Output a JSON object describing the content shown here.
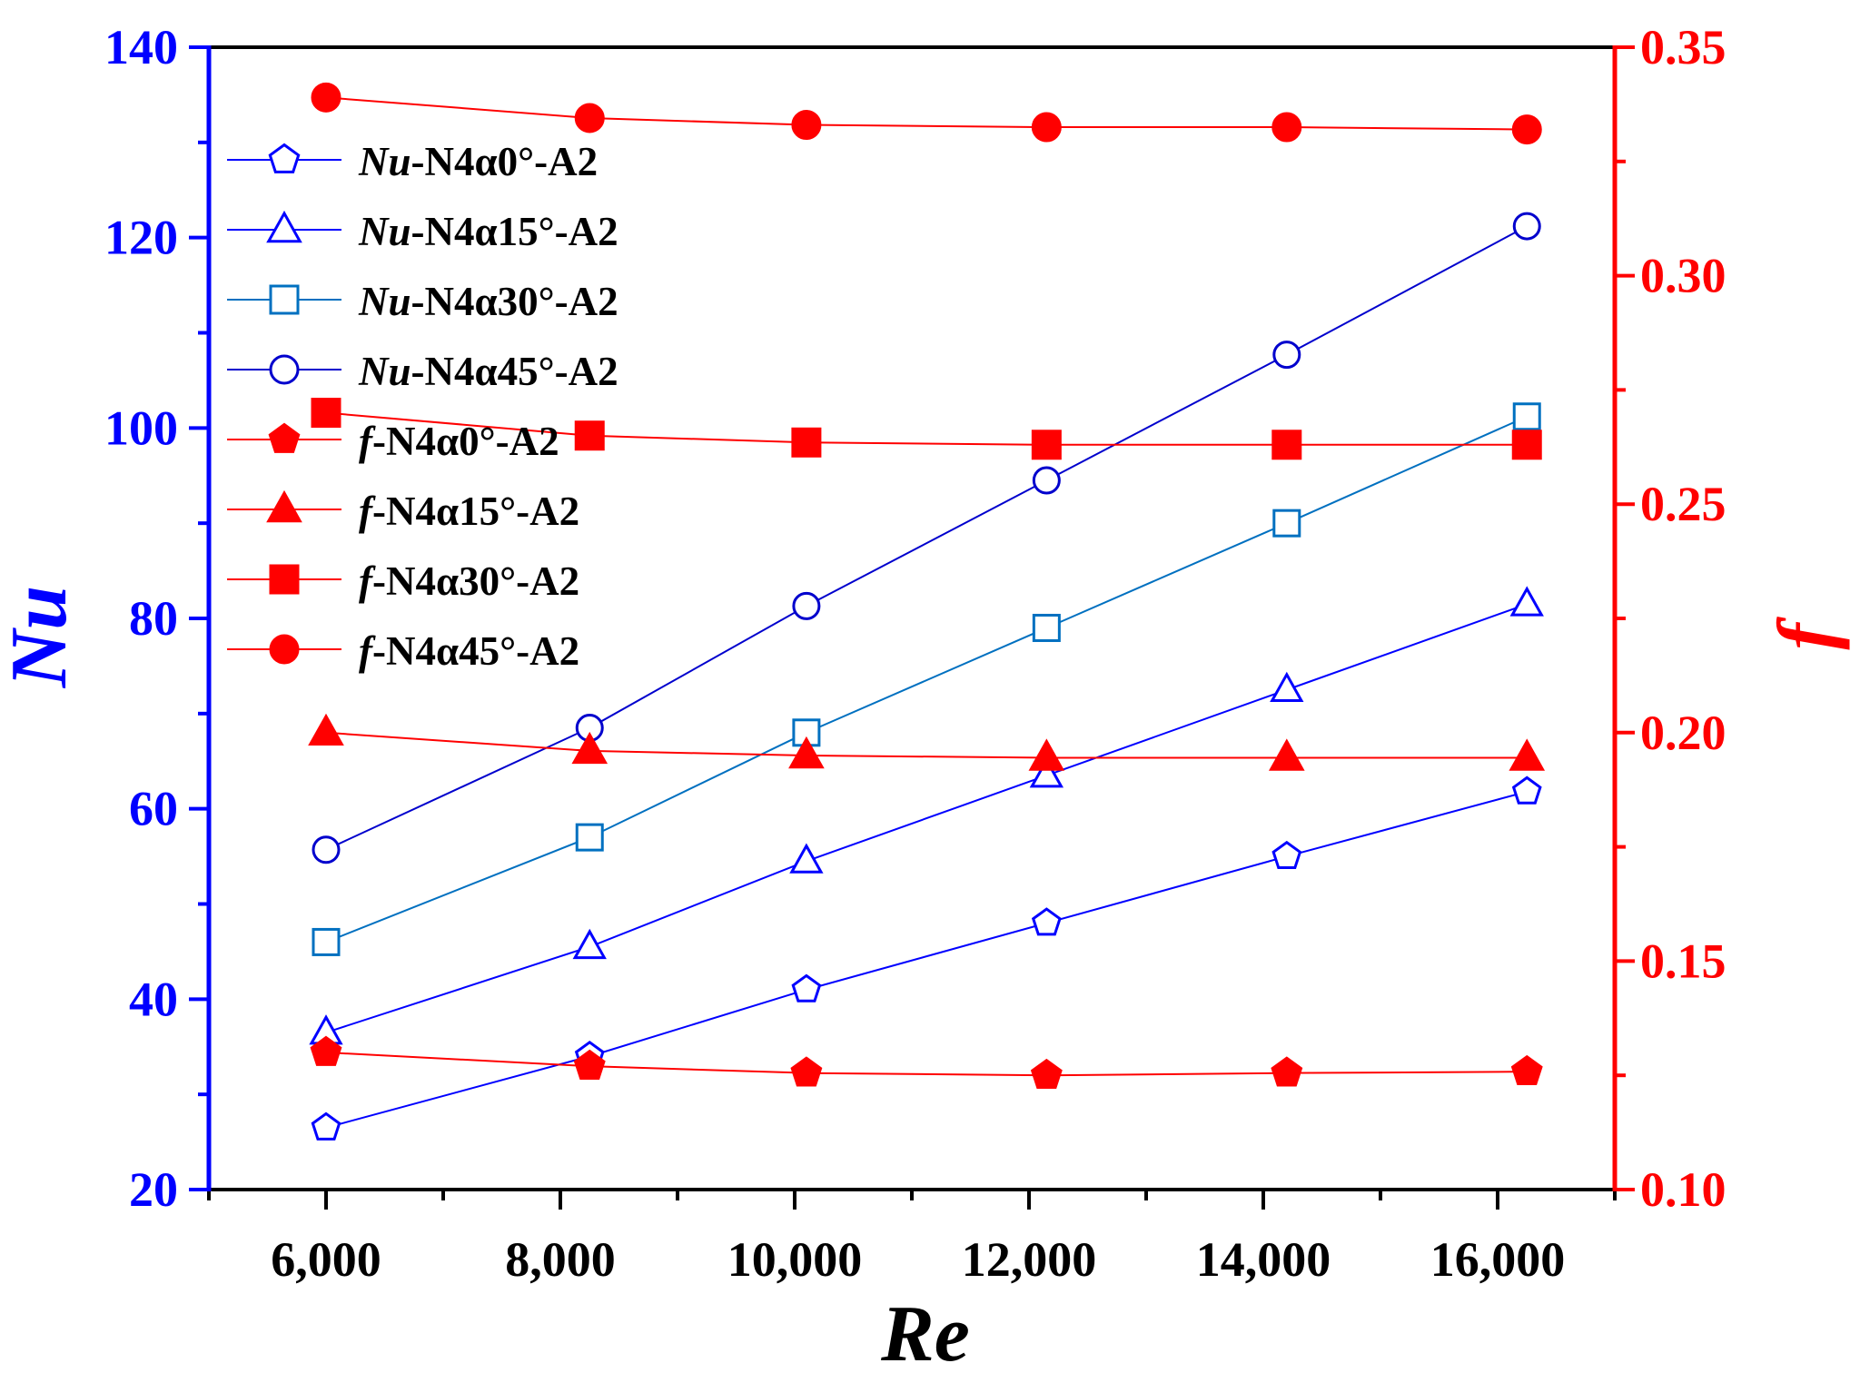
{
  "chart_data": {
    "type": "line",
    "xlabel": "Re",
    "ylabel_left": "Nu",
    "ylabel_right": "f",
    "xlim": [
      5000,
      17000
    ],
    "ylim_left": [
      20,
      140
    ],
    "ylim_right": [
      0.1,
      0.35
    ],
    "x_ticks": [
      6000,
      8000,
      10000,
      12000,
      14000,
      16000
    ],
    "x_tick_labels": [
      "6,000",
      "8,000",
      "10,000",
      "12,000",
      "14,000",
      "16,000"
    ],
    "y_left_ticks": [
      20,
      40,
      60,
      80,
      100,
      120,
      140
    ],
    "y_left_tick_labels": [
      "20",
      "40",
      "60",
      "80",
      "100",
      "120",
      "140"
    ],
    "y_right_ticks": [
      0.1,
      0.15,
      0.2,
      0.25,
      0.3,
      0.35
    ],
    "y_right_tick_labels": [
      "0.10",
      "0.15",
      "0.20",
      "0.25",
      "0.30",
      "0.35"
    ],
    "colors": {
      "left_axis": "#0000ff",
      "right_axis": "#ff0000",
      "frame": "#000000"
    },
    "x": [
      6000,
      8250,
      10100,
      12150,
      14200,
      16250
    ],
    "series": [
      {
        "name": "Nu-N4α0°-A2",
        "prefix": "Nu",
        "suffix": "-N4α0°-A2",
        "axis": "left",
        "marker": "pentagon",
        "filled": false,
        "color": "#0000ff",
        "values": [
          26.5,
          34.0,
          41.0,
          48.0,
          55.0,
          61.8
        ]
      },
      {
        "name": "Nu-N4α15°-A2",
        "prefix": "Nu",
        "suffix": "-N4α15°-A2",
        "axis": "left",
        "marker": "triangle",
        "filled": false,
        "color": "#0000ff",
        "values": [
          36.5,
          45.5,
          54.5,
          63.5,
          72.5,
          81.5
        ]
      },
      {
        "name": "Nu-N4α30°-A2",
        "prefix": "Nu",
        "suffix": "-N4α30°-A2",
        "axis": "left",
        "marker": "square",
        "filled": false,
        "color": "#0070c0",
        "values": [
          46.0,
          57.0,
          68.0,
          79.0,
          90.0,
          101.2
        ]
      },
      {
        "name": "Nu-N4α45°-A2",
        "prefix": "Nu",
        "suffix": "-N4α45°-A2",
        "axis": "left",
        "marker": "circle",
        "filled": false,
        "color": "#0000cd",
        "values": [
          55.7,
          68.5,
          81.3,
          94.5,
          107.7,
          121.2
        ]
      },
      {
        "name": "f-N4α0°-A2",
        "prefix": "f",
        "suffix": "-N4α0°-A2",
        "axis": "right",
        "marker": "pentagon",
        "filled": true,
        "color": "#ff0000",
        "values": [
          0.13,
          0.127,
          0.1255,
          0.125,
          0.1255,
          0.1258
        ]
      },
      {
        "name": "f-N4α15°-A2",
        "prefix": "f",
        "suffix": "-N4α15°-A2",
        "axis": "right",
        "marker": "triangle",
        "filled": true,
        "color": "#ff0000",
        "values": [
          0.2,
          0.196,
          0.195,
          0.1945,
          0.1945,
          0.1945
        ]
      },
      {
        "name": "f-N4α30°-A2",
        "prefix": "f",
        "suffix": "-N4α30°-A2",
        "axis": "right",
        "marker": "square",
        "filled": true,
        "color": "#ff0000",
        "values": [
          0.27,
          0.265,
          0.2635,
          0.263,
          0.263,
          0.263
        ]
      },
      {
        "name": "f-N4α45°-A2",
        "prefix": "f",
        "suffix": "-N4α45°-A2",
        "axis": "right",
        "marker": "circle",
        "filled": true,
        "color": "#ff0000",
        "values": [
          0.339,
          0.3345,
          0.333,
          0.3325,
          0.3325,
          0.332
        ]
      }
    ],
    "legend_placement": "top-left (inside)"
  }
}
